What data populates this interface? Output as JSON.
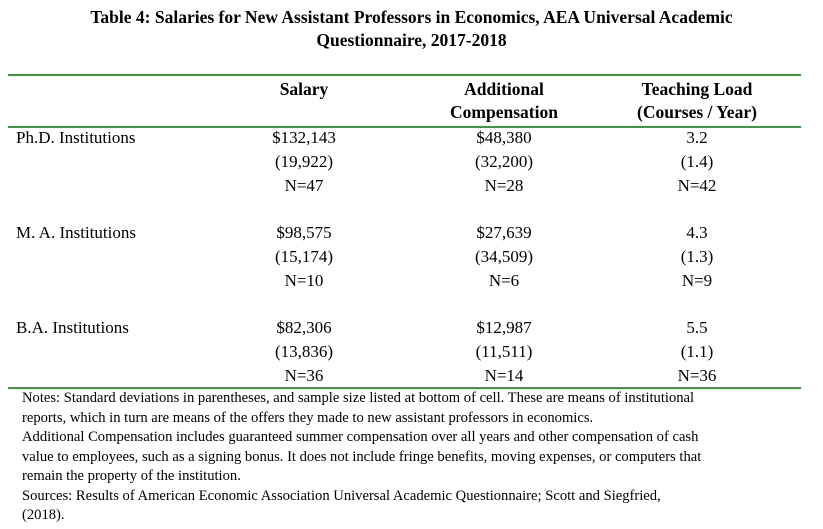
{
  "title": {
    "line1": "Table 4: Salaries for New Assistant Professors in Economics, AEA Universal Academic",
    "line2": "Questionnaire, 2017-2018"
  },
  "columns": {
    "salary": "Salary",
    "compensation_line1": "Additional",
    "compensation_line2": "Compensation",
    "load_line1": "Teaching Load",
    "load_line2": "(Courses / Year)"
  },
  "rows": [
    {
      "label": "Ph.D. Institutions",
      "salary": {
        "mean": "$132,143",
        "sd": "(19,922)",
        "n": "N=47"
      },
      "compensation": {
        "mean": "$48,380",
        "sd": "(32,200)",
        "n": "N=28"
      },
      "load": {
        "mean": "3.2",
        "sd": "(1.4)",
        "n": "N=42"
      }
    },
    {
      "label": "M. A. Institutions",
      "salary": {
        "mean": "$98,575",
        "sd": "(15,174)",
        "n": "N=10"
      },
      "compensation": {
        "mean": "$27,639",
        "sd": "(34,509)",
        "n": "N=6"
      },
      "load": {
        "mean": "4.3",
        "sd": "(1.3)",
        "n": "N=9"
      }
    },
    {
      "label": "B.A. Institutions",
      "salary": {
        "mean": "$82,306",
        "sd": "(13,836)",
        "n": "N=36"
      },
      "compensation": {
        "mean": "$12,987",
        "sd": "(11,511)",
        "n": "N=14"
      },
      "load": {
        "mean": "5.5",
        "sd": "(1.1)",
        "n": "N=36"
      }
    }
  ],
  "notes": {
    "line1": "Notes: Standard deviations in parentheses, and sample size listed at bottom of cell.  These are means of institutional",
    "line2": "reports, which in turn are means of the offers they made to new assistant professors in economics.",
    "line3": "Additional Compensation includes guaranteed summer compensation over all years and other compensation of cash",
    "line4": "value to employees, such as a signing bonus.  It does not include fringe benefits, moving expenses, or computers that",
    "line5": "remain the property of the institution.",
    "line6": "Sources:  Results of American Economic Association Universal Academic Questionnaire; Scott and Siegfried,",
    "line7": "(2018)."
  },
  "colors": {
    "rule": "#3b9a3b"
  }
}
